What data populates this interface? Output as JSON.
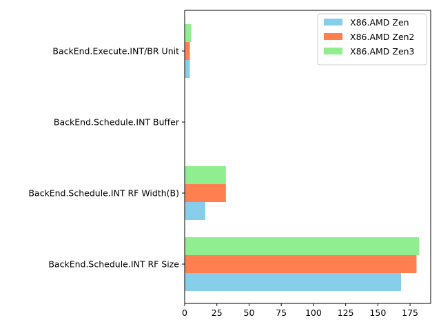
{
  "chart_data": {
    "type": "bar",
    "orientation": "horizontal",
    "categories": [
      "BackEnd.Schedule.INT RF Size",
      "BackEnd.Schedule.INT RF Width(B)",
      "BackEnd.Schedule.INT Buffer",
      "BackEnd.Execute.INT/BR Unit"
    ],
    "series": [
      {
        "name": "X86.AMD Zen",
        "color": "#87ceeb",
        "values": [
          168,
          16,
          0,
          4
        ]
      },
      {
        "name": "X86.AMD Zen2",
        "color": "#ff7f50",
        "values": [
          180,
          32,
          0,
          4
        ]
      },
      {
        "name": "X86.AMD Zen3",
        "color": "#90ee90",
        "values": [
          182,
          32,
          0,
          5
        ]
      }
    ],
    "xticks": [
      0,
      25,
      50,
      75,
      100,
      125,
      150,
      175
    ],
    "xlim": [
      0,
      191
    ],
    "title": "",
    "xlabel": "",
    "ylabel": "",
    "grid": false,
    "legend_position": "top-right"
  }
}
